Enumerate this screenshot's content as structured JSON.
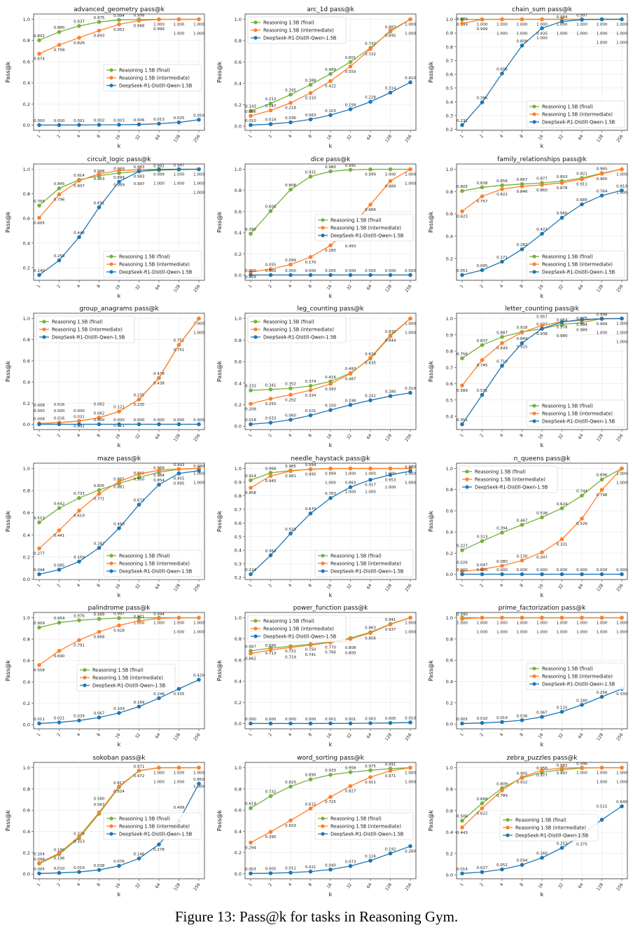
{
  "caption": "Figure 13: Pass@k for tasks in Reasoning Gym.",
  "colors": {
    "final": "#77b13d",
    "intermediate": "#ff7f2a",
    "deepseek": "#1f77b4"
  },
  "chart_data": {
    "type": "line",
    "x": [
      "1",
      "2",
      "4",
      "8",
      "16",
      "32",
      "64",
      "128",
      "256"
    ],
    "xlabel": "k",
    "ylabel": "Pass@k",
    "grid": true,
    "series_names": [
      "Reasoning 1.5B (final)",
      "Reasoning 1.5B (intermediate)",
      "DeepSeek-R1-Distill-Qwen-1.5B"
    ],
    "charts": [
      {
        "title": "advanced_geometry pass@k",
        "legend": "center-right",
        "final": [
          0.802,
          0.88,
          0.937,
          0.975,
          0.994,
          0.998,
          1.0,
          1.0,
          1.0
        ],
        "intermediate": [
          0.674,
          0.758,
          0.826,
          0.893,
          0.952,
          0.988,
          0.999,
          1.0,
          1.0
        ],
        "deepseek": [
          0.0,
          0.0,
          0.001,
          0.002,
          0.003,
          0.006,
          0.013,
          0.025,
          0.05
        ]
      },
      {
        "title": "arc_1d pass@k",
        "legend": "upper-left",
        "final": [
          0.143,
          0.212,
          0.295,
          0.388,
          0.489,
          0.601,
          0.732,
          0.887,
          1.0
        ],
        "intermediate": [
          0.096,
          0.147,
          0.218,
          0.31,
          0.422,
          0.559,
          0.722,
          0.895,
          1.0
        ],
        "deepseek": [
          0.01,
          0.019,
          0.036,
          0.063,
          0.103,
          0.158,
          0.228,
          0.314,
          0.41
        ]
      },
      {
        "title": "chain_sum pass@k",
        "legend": "lower-right",
        "final": [
          0.999,
          1.0,
          1.0,
          1.0,
          1.0,
          1.0,
          1.0,
          1.0,
          1.0
        ],
        "intermediate": [
          0.97,
          0.999,
          1.0,
          1.0,
          1.0,
          1.0,
          1.0,
          1.0,
          1.0
        ],
        "deepseek": [
          0.231,
          0.396,
          0.606,
          0.809,
          0.935,
          0.984,
          0.997,
          1.0,
          1.0
        ]
      },
      {
        "title": "circuit_logic pass@k",
        "legend": "lower-right",
        "final": [
          0.705,
          0.845,
          0.914,
          0.948,
          0.969,
          0.983,
          0.992,
          0.997,
          1.0
        ],
        "intermediate": [
          0.605,
          0.796,
          0.907,
          0.963,
          0.989,
          0.997,
          1.0,
          1.0,
          1.0
        ],
        "deepseek": [
          0.14,
          0.259,
          0.448,
          0.691,
          0.899,
          0.983,
          0.999,
          1.0,
          1.0
        ]
      },
      {
        "title": "dice pass@k",
        "legend": "center-right",
        "final": [
          0.39,
          0.605,
          0.808,
          0.931,
          0.98,
          0.995,
          0.999,
          1.0,
          1.0
        ],
        "intermediate": [
          0.029,
          0.055,
          0.099,
          0.17,
          0.28,
          0.45,
          0.666,
          0.889,
          1.0
        ],
        "deepseek": [
          0.0,
          0.0,
          0.0,
          0.0,
          0.0,
          0.0,
          0.0,
          0.0,
          0.0
        ]
      },
      {
        "title": "family_relationships pass@k",
        "legend": "lower-right",
        "final": [
          0.805,
          0.838,
          0.856,
          0.867,
          0.877,
          0.893,
          0.921,
          0.965,
          1.0
        ],
        "intermediate": [
          0.623,
          0.757,
          0.822,
          0.846,
          0.86,
          0.878,
          0.911,
          0.96,
          1.0
        ],
        "deepseek": [
          0.051,
          0.095,
          0.171,
          0.282,
          0.421,
          0.565,
          0.685,
          0.764,
          0.81
        ]
      },
      {
        "title": "group_anagrams pass@k",
        "legend": "upper-left",
        "final": [
          0.008,
          0.016,
          0.031,
          0.062,
          0.121,
          0.235,
          0.438,
          0.751,
          1.0
        ],
        "intermediate": [
          0.008,
          0.016,
          0.031,
          0.062,
          0.121,
          0.235,
          0.438,
          0.751,
          1.0
        ],
        "deepseek": [
          0.0,
          0.0,
          0.0,
          0.0,
          0.0,
          0.0,
          0.0,
          0.0,
          0.0
        ]
      },
      {
        "title": "leg_counting pass@k",
        "legend": "upper-left",
        "final": [
          0.333,
          0.341,
          0.352,
          0.374,
          0.416,
          0.493,
          0.629,
          0.836,
          1.0
        ],
        "intermediate": [
          0.208,
          0.255,
          0.292,
          0.334,
          0.393,
          0.487,
          0.635,
          0.844,
          1.0
        ],
        "deepseek": [
          0.018,
          0.033,
          0.06,
          0.101,
          0.15,
          0.198,
          0.241,
          0.28,
          0.31
        ]
      },
      {
        "title": "letter_counting pass@k",
        "legend": "lower-right",
        "final": [
          0.756,
          0.837,
          0.887,
          0.918,
          0.937,
          0.964,
          0.975,
          0.999,
          1.0
        ],
        "intermediate": [
          0.589,
          0.745,
          0.849,
          0.915,
          0.957,
          0.98,
          0.989,
          1.0,
          1.0
        ],
        "deepseek": [
          0.351,
          0.531,
          0.71,
          0.849,
          0.938,
          0.978,
          0.994,
          0.998,
          1.0
        ]
      },
      {
        "title": "maze pass@k",
        "legend": "lower-right",
        "final": [
          0.513,
          0.642,
          0.733,
          0.805,
          0.865,
          0.919,
          0.966,
          0.993,
          1.0
        ],
        "intermediate": [
          0.277,
          0.441,
          0.619,
          0.771,
          0.881,
          0.95,
          0.984,
          0.995,
          1.0
        ],
        "deepseek": [
          0.044,
          0.085,
          0.159,
          0.282,
          0.46,
          0.673,
          0.854,
          0.955,
          0.98
        ]
      },
      {
        "title": "needle_haystack pass@k",
        "legend": "lower-right",
        "final": [
          0.914,
          0.968,
          0.985,
          0.994,
          0.999,
          1.0,
          1.0,
          1.0,
          1.0
        ],
        "intermediate": [
          0.858,
          0.945,
          0.981,
          0.995,
          1.0,
          1.0,
          1.0,
          1.0,
          1.0
        ],
        "deepseek": [
          0.224,
          0.363,
          0.523,
          0.67,
          0.783,
          0.863,
          0.917,
          0.953,
          0.98
        ]
      },
      {
        "title": "n_queens pass@k",
        "legend": "upper-left",
        "final": [
          0.227,
          0.313,
          0.394,
          0.467,
          0.538,
          0.624,
          0.744,
          0.896,
          1.0
        ],
        "intermediate": [
          0.026,
          0.047,
          0.08,
          0.13,
          0.207,
          0.331,
          0.526,
          0.798,
          1.0
        ],
        "deepseek": [
          0.0,
          0.0,
          0.0,
          0.0,
          0.0,
          0.0,
          0.0,
          0.0,
          0.0
        ]
      },
      {
        "title": "palindrome pass@k",
        "legend": "center",
        "final": [
          0.909,
          0.954,
          0.976,
          0.989,
          0.997,
          1.0,
          1.0,
          1.0,
          1.0
        ],
        "intermediate": [
          0.558,
          0.69,
          0.791,
          0.868,
          0.928,
          0.971,
          0.994,
          1.0,
          1.0
        ],
        "deepseek": [
          0.011,
          0.021,
          0.039,
          0.067,
          0.109,
          0.169,
          0.248,
          0.335,
          0.42
        ]
      },
      {
        "title": "power_function pass@k",
        "legend": "upper-left",
        "final": [
          0.687,
          0.713,
          0.731,
          0.75,
          0.77,
          0.808,
          0.863,
          0.941,
          1.0
        ],
        "intermediate": [
          0.662,
          0.695,
          0.719,
          0.741,
          0.766,
          0.8,
          0.856,
          0.937,
          1.0
        ],
        "deepseek": [
          0.0,
          0.0,
          0.0,
          0.0,
          0.001,
          0.001,
          0.003,
          0.005,
          0.01
        ]
      },
      {
        "title": "prime_factorization pass@k",
        "legend": "center-right",
        "final": [
          1.0,
          1.0,
          1.0,
          1.0,
          1.0,
          1.0,
          1.0,
          1.0,
          1.0
        ],
        "intermediate": [
          0.99,
          1.0,
          1.0,
          1.0,
          1.0,
          1.0,
          1.0,
          1.0,
          1.0
        ],
        "deepseek": [
          0.005,
          0.01,
          0.019,
          0.036,
          0.067,
          0.115,
          0.18,
          0.256,
          0.33
        ]
      },
      {
        "title": "sokoban pass@k",
        "legend": "center-right",
        "final": [
          0.098,
          0.186,
          0.339,
          0.567,
          0.817,
          0.971,
          1.0,
          1.0,
          1.0
        ],
        "intermediate": [
          0.104,
          0.196,
          0.353,
          0.58,
          0.824,
          0.972,
          1.0,
          1.0,
          1.0
        ],
        "deepseek": [
          0.005,
          0.01,
          0.019,
          0.038,
          0.076,
          0.146,
          0.278,
          0.499,
          0.85
        ]
      },
      {
        "title": "word_sorting pass@k",
        "legend": "center-right",
        "final": [
          0.619,
          0.732,
          0.823,
          0.89,
          0.933,
          0.958,
          0.975,
          0.991,
          1.0
        ],
        "intermediate": [
          0.294,
          0.395,
          0.503,
          0.615,
          0.725,
          0.827,
          0.911,
          0.971,
          1.0
        ],
        "deepseek": [
          0.003,
          0.005,
          0.011,
          0.021,
          0.04,
          0.073,
          0.124,
          0.192,
          0.26
        ]
      },
      {
        "title": "zebra_puzzles pass@k",
        "legend": "center",
        "final": [
          0.506,
          0.668,
          0.809,
          0.905,
          0.956,
          0.982,
          0.996,
          1.0,
          1.0
        ],
        "intermediate": [
          0.443,
          0.622,
          0.789,
          0.912,
          0.977,
          0.997,
          1.0,
          1.0,
          1.0
        ],
        "deepseek": [
          0.014,
          0.027,
          0.052,
          0.094,
          0.16,
          0.253,
          0.375,
          0.515,
          0.64
        ]
      }
    ]
  }
}
